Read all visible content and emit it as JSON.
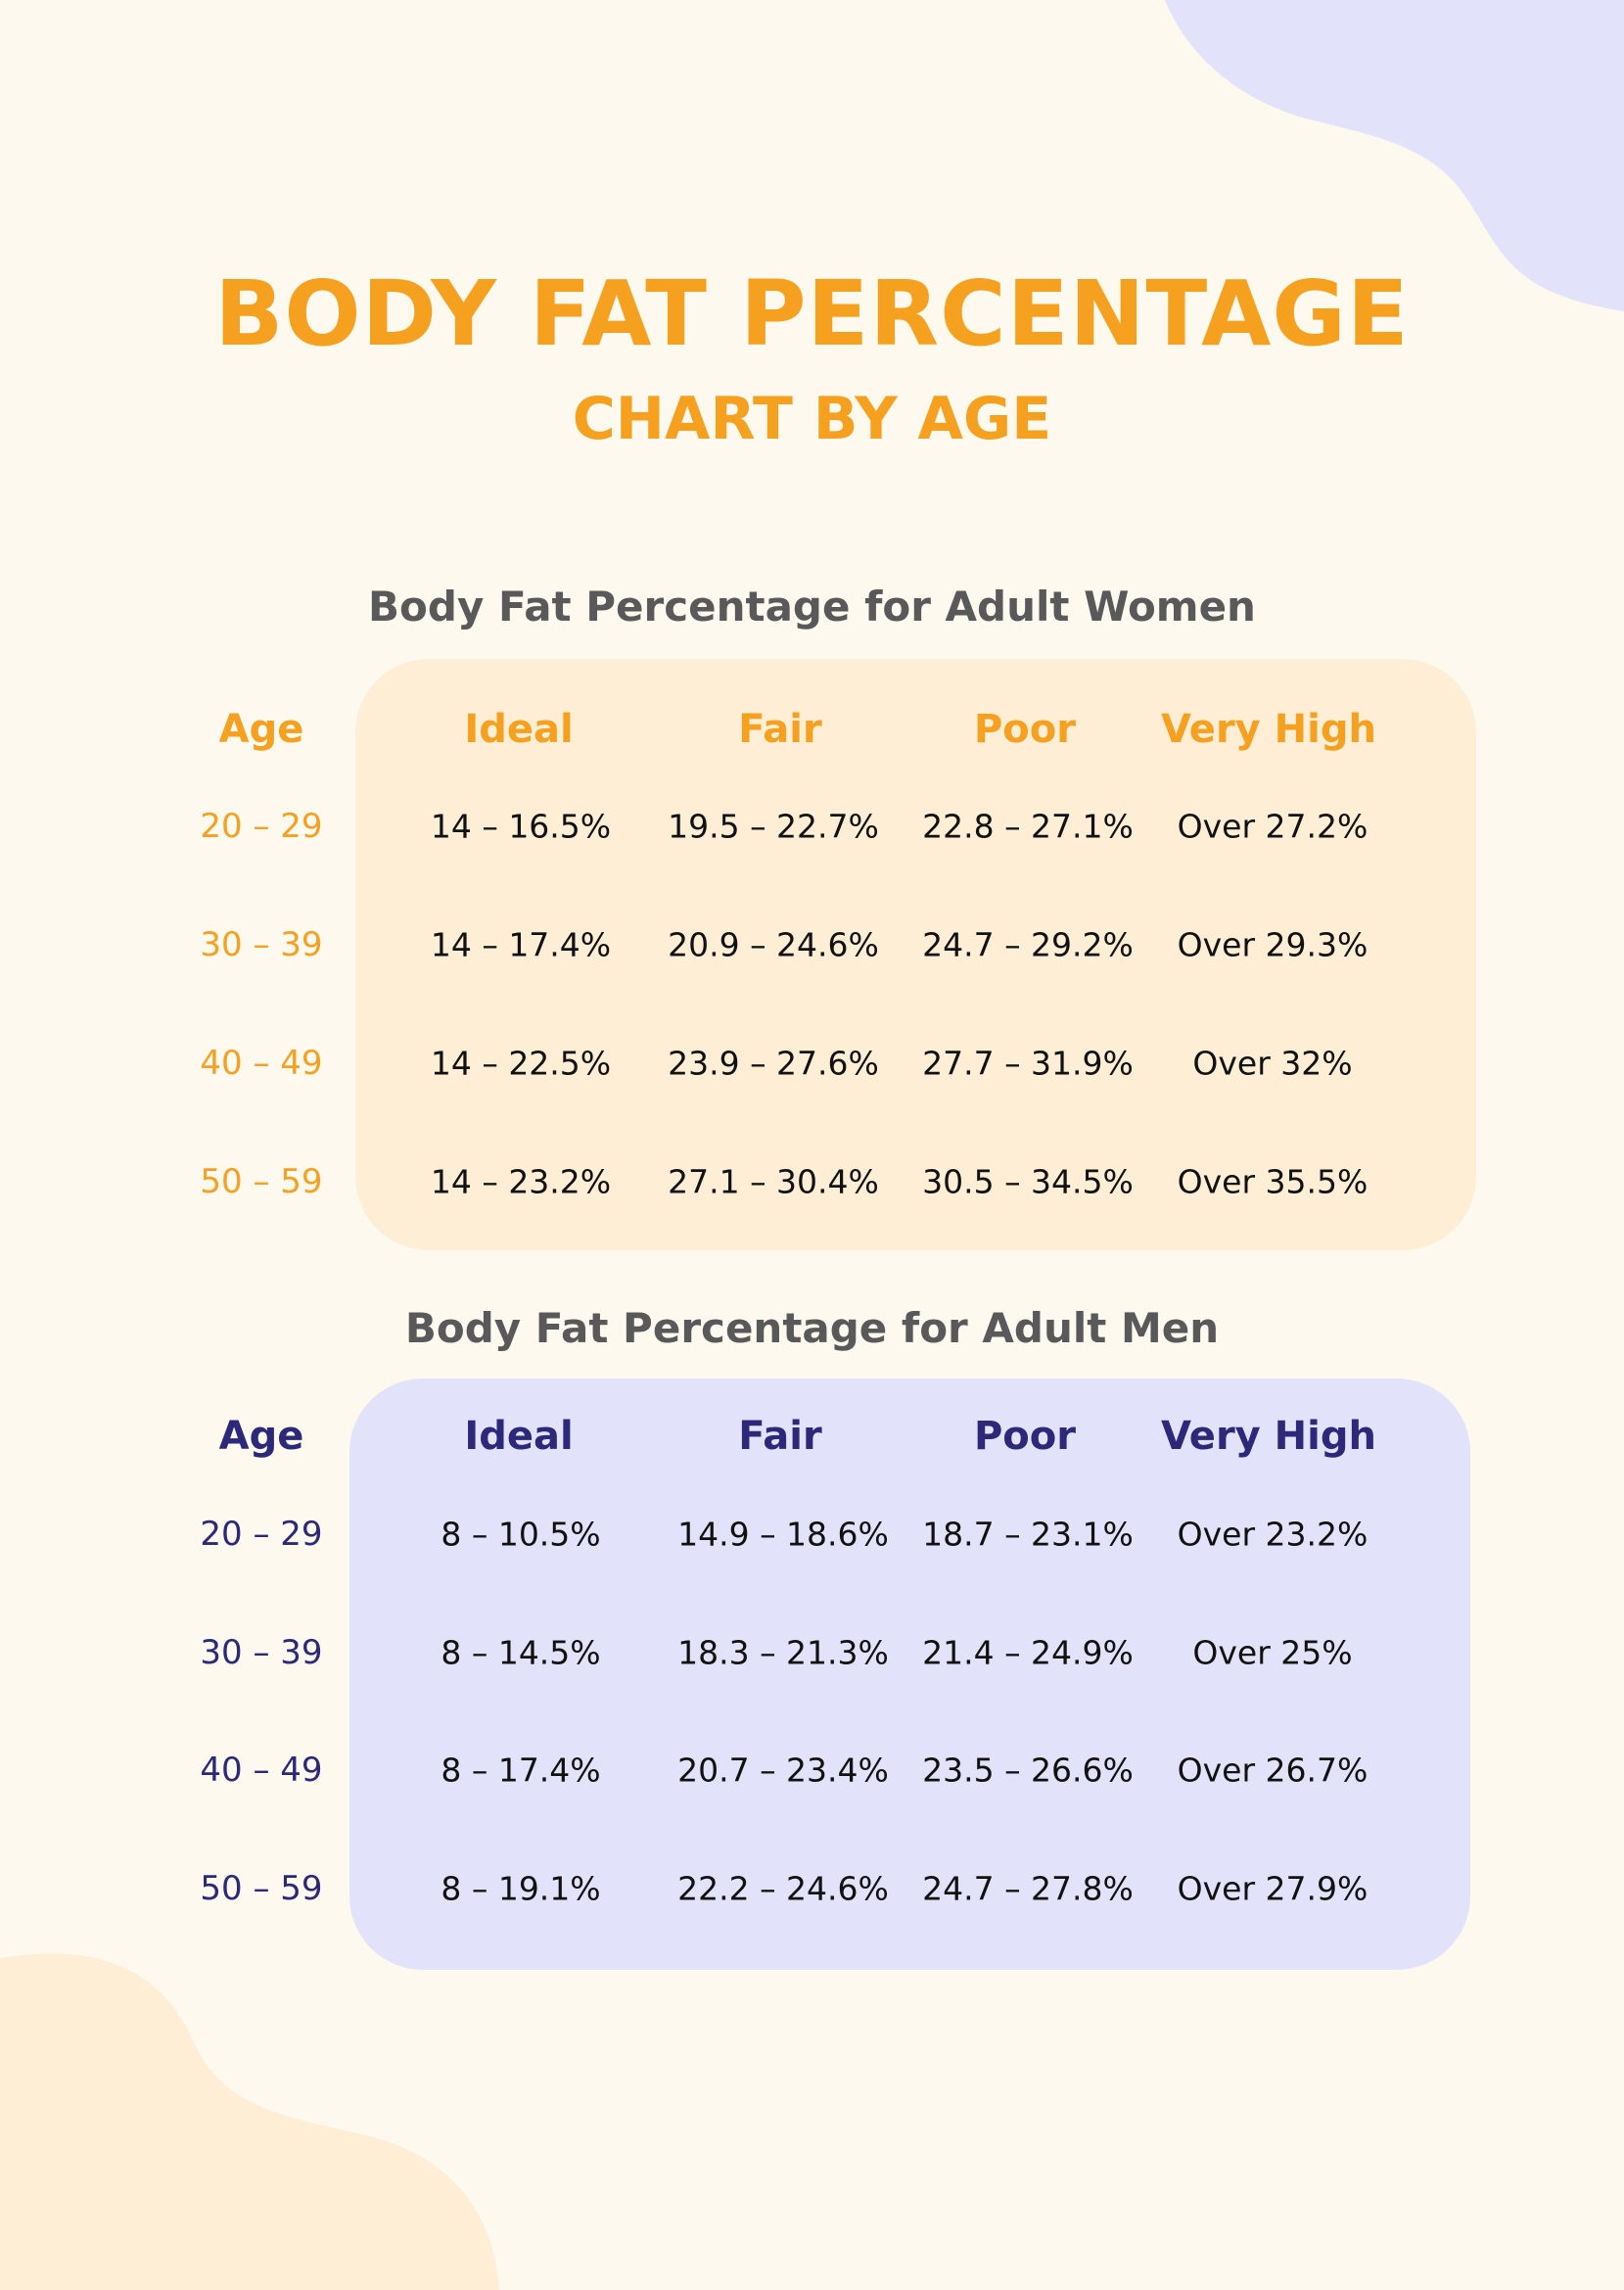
{
  "header": {
    "title": "BODY FAT PERCENTAGE",
    "subtitle": "CHART BY AGE"
  },
  "colors": {
    "background": "#fdf9ef",
    "accent_orange": "#f6a01f",
    "accent_navy": "#2b2978",
    "women_panel": "#feeed6",
    "men_panel": "#e2e2fa",
    "blob_purple": "#e2e2fa",
    "blob_peach": "#feeed6"
  },
  "women": {
    "title": "Body Fat Percentage for Adult Women",
    "columns": [
      "Age",
      "Ideal",
      "Fair",
      "Poor",
      "Very High"
    ],
    "rows": [
      {
        "age": "20 – 29",
        "ideal": "14 – 16.5%",
        "fair": "19.5 – 22.7%",
        "poor": "22.8 – 27.1%",
        "very_high": "Over 27.2%"
      },
      {
        "age": "30 – 39",
        "ideal": "14 – 17.4%",
        "fair": "20.9 – 24.6%",
        "poor": "24.7 – 29.2%",
        "very_high": "Over 29.3%"
      },
      {
        "age": "40 – 49",
        "ideal": "14 – 22.5%",
        "fair": "23.9 – 27.6%",
        "poor": "27.7 – 31.9%",
        "very_high": "Over 32%"
      },
      {
        "age": "50 – 59",
        "ideal": "14 – 23.2%",
        "fair": "27.1 – 30.4%",
        "poor": "30.5 – 34.5%",
        "very_high": "Over 35.5%"
      }
    ]
  },
  "men": {
    "title": "Body Fat Percentage for Adult Men",
    "columns": [
      "Age",
      "Ideal",
      "Fair",
      "Poor",
      "Very High"
    ],
    "rows": [
      {
        "age": "20 – 29",
        "ideal": "8 – 10.5%",
        "fair": "14.9 – 18.6%",
        "poor": "18.7 – 23.1%",
        "very_high": "Over 23.2%"
      },
      {
        "age": "30 – 39",
        "ideal": "8 – 14.5%",
        "fair": "18.3 – 21.3%",
        "poor": "21.4 – 24.9%",
        "very_high": "Over 25%"
      },
      {
        "age": "40 – 49",
        "ideal": "8 – 17.4%",
        "fair": "20.7 – 23.4%",
        "poor": "23.5 – 26.6%",
        "very_high": "Over 26.7%"
      },
      {
        "age": "50 – 59",
        "ideal": "8 – 19.1%",
        "fair": "22.2 – 24.6%",
        "poor": "24.7 – 27.8%",
        "very_high": "Over 27.9%"
      }
    ]
  }
}
